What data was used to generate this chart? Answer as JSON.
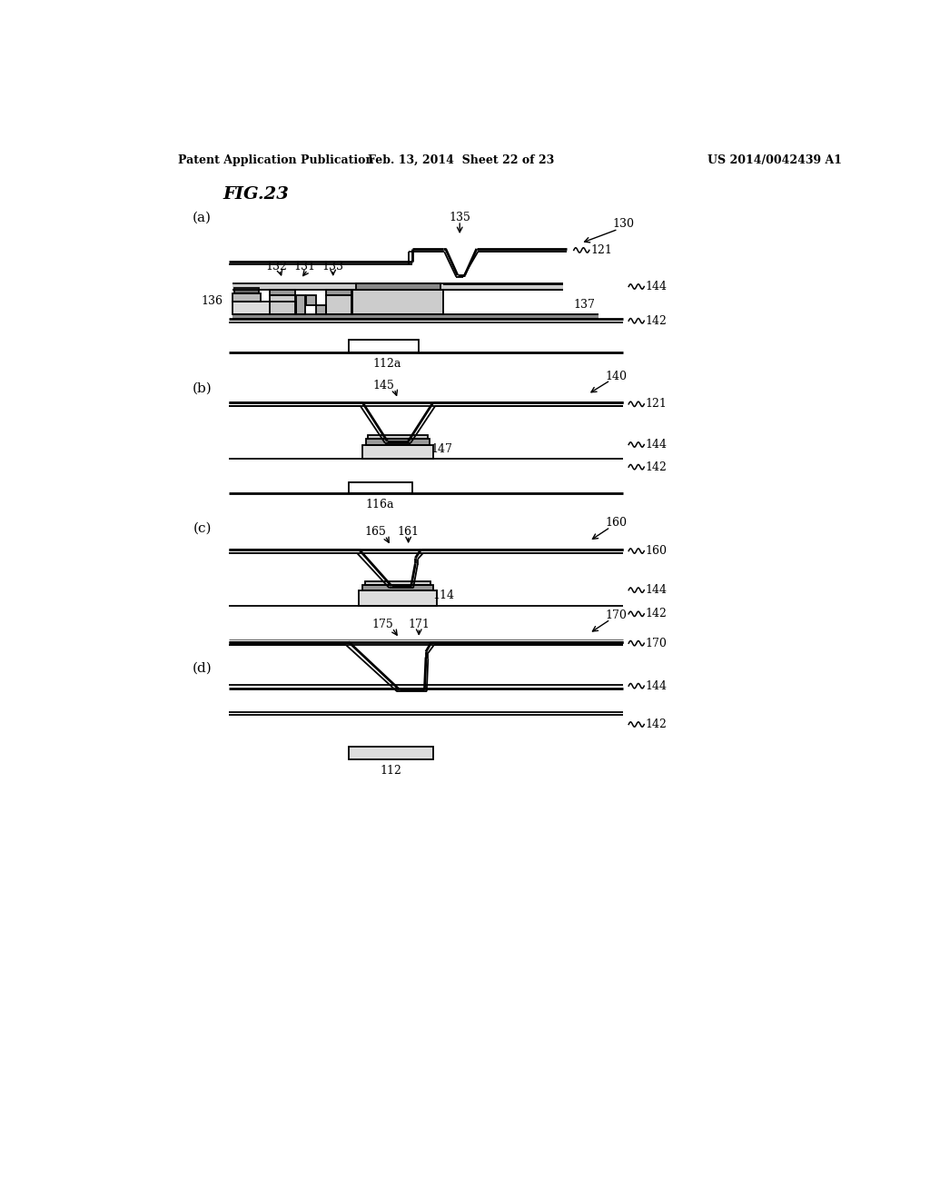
{
  "background_color": "#ffffff",
  "header_left": "Patent Application Publication",
  "header_mid": "Feb. 13, 2014  Sheet 22 of 23",
  "header_right": "US 2014/0042439 A1",
  "fig_label": "FIG.23",
  "lw": 1.3,
  "tlw": 2.0
}
